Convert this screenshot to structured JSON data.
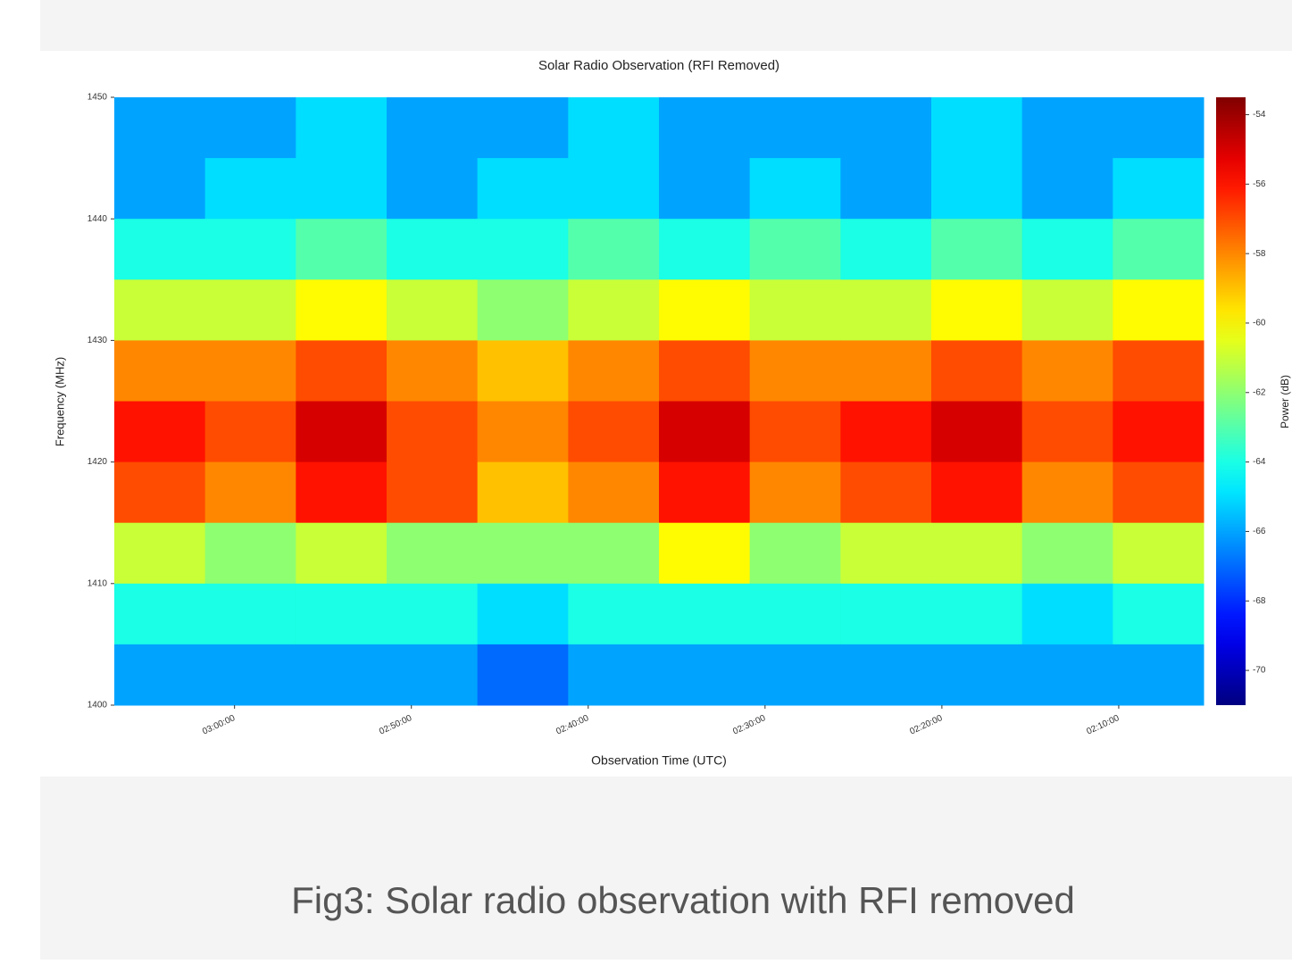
{
  "chart_data": {
    "type": "heatmap",
    "title": "Solar Radio Observation (RFI Removed)",
    "xlabel": "Observation Time (UTC)",
    "ylabel": "Frequency (MHz)",
    "colorbar_label": "Power (dB)",
    "colormap": "jet",
    "xlim": [
      "03:06:48",
      "02:05:12"
    ],
    "xticks": [
      "03:00:00",
      "02:50:00",
      "02:40:00",
      "02:30:00",
      "02:20:00",
      "02:10:00"
    ],
    "ylim": [
      1400,
      1450
    ],
    "yticks": [
      1400,
      1410,
      1420,
      1430,
      1440,
      1450
    ],
    "clim": [
      -71,
      -53.5
    ],
    "cticks": [
      -54,
      -56,
      -58,
      -60,
      -62,
      -64,
      -66,
      -68,
      -70
    ],
    "z": [
      [
        -66,
        -66,
        -65,
        -66,
        -66,
        -65,
        -66,
        -66,
        -66,
        -65,
        -66,
        -66
      ],
      [
        -66,
        -65,
        -65,
        -66,
        -65,
        -65,
        -66,
        -65,
        -66,
        -65,
        -66,
        -65
      ],
      [
        -64,
        -64,
        -63,
        -64,
        -64,
        -63,
        -64,
        -63,
        -64,
        -63,
        -64,
        -63
      ],
      [
        -61,
        -61,
        -60,
        -61,
        -62,
        -61,
        -60,
        -61,
        -61,
        -60,
        -61,
        -60
      ],
      [
        -58,
        -58,
        -57,
        -58,
        -59,
        -58,
        -57,
        -58,
        -58,
        -57,
        -58,
        -57
      ],
      [
        -56,
        -57,
        -55,
        -57,
        -58,
        -57,
        -55,
        -57,
        -56,
        -55,
        -57,
        -56
      ],
      [
        -57,
        -58,
        -56,
        -57,
        -59,
        -58,
        -56,
        -58,
        -57,
        -56,
        -58,
        -57
      ],
      [
        -61,
        -62,
        -61,
        -62,
        -62,
        -62,
        -60,
        -62,
        -61,
        -61,
        -62,
        -61
      ],
      [
        -64,
        -64,
        -64,
        -64,
        -65,
        -64,
        -64,
        -64,
        -64,
        -64,
        -65,
        -64
      ],
      [
        -66,
        -66,
        -66,
        -66,
        -67,
        -66,
        -66,
        -66,
        -66,
        -66,
        -66,
        -66
      ]
    ]
  },
  "caption": "Fig3: Solar radio observation with RFI removed"
}
